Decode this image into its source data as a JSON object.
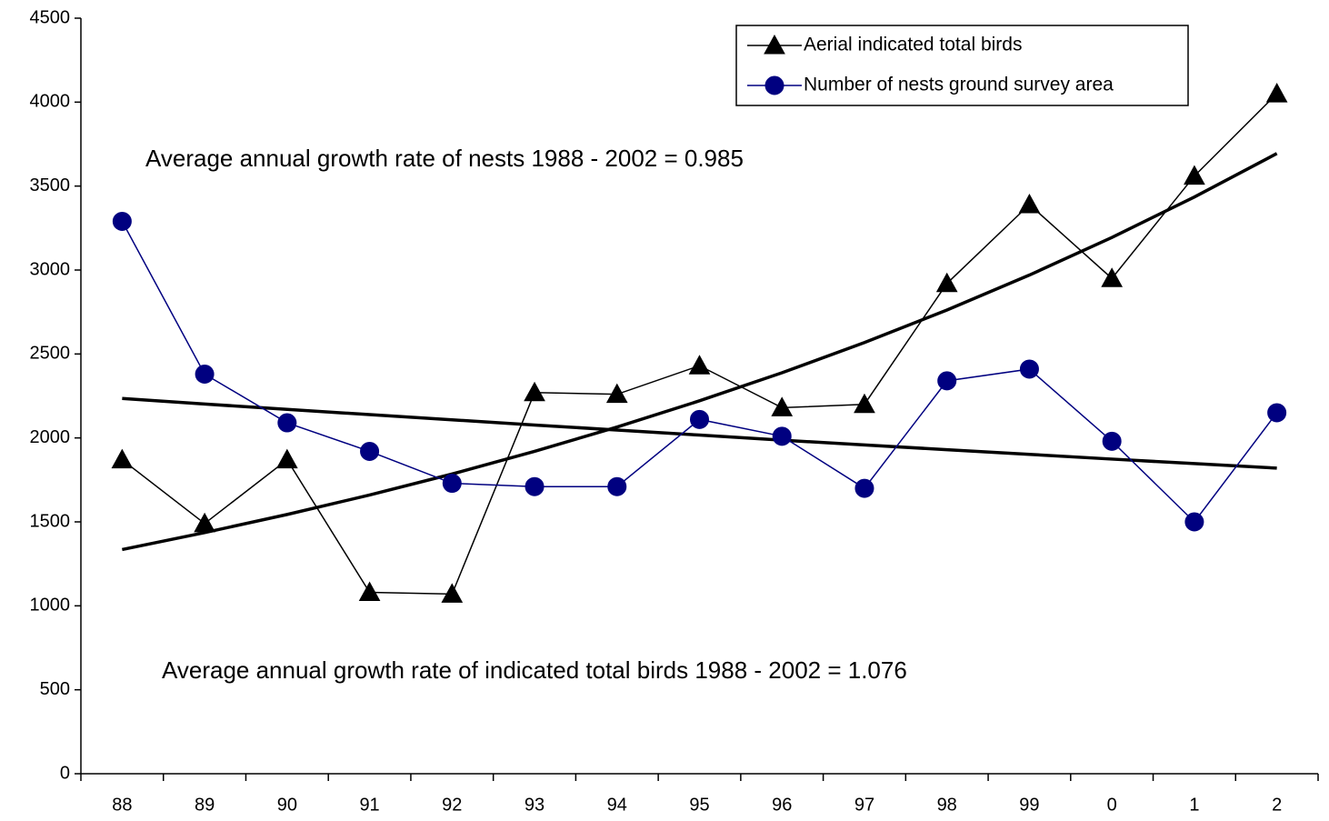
{
  "chart_data": {
    "type": "line",
    "categories": [
      "88",
      "89",
      "90",
      "91",
      "92",
      "93",
      "94",
      "95",
      "96",
      "97",
      "98",
      "99",
      "0",
      "1",
      "2"
    ],
    "series": [
      {
        "name": "Aerial indicated total birds",
        "color": "#000000",
        "marker": "triangle",
        "values": [
          1870,
          1490,
          1870,
          1080,
          1070,
          2270,
          2260,
          2430,
          2180,
          2200,
          2920,
          3390,
          2950,
          3560,
          4050
        ]
      },
      {
        "name": "Number of nests ground survey area",
        "color": "#000080",
        "marker": "circle",
        "values": [
          3290,
          2380,
          2090,
          1920,
          1730,
          1710,
          1710,
          2110,
          2010,
          1700,
          2340,
          2410,
          1980,
          1500,
          2150
        ]
      }
    ],
    "trendlines": [
      {
        "color": "#000000",
        "values": [
          2235,
          2202,
          2170,
          2139,
          2108,
          2077,
          2047,
          2017,
          1987,
          1958,
          1930,
          1902,
          1874,
          1847,
          1820
        ]
      },
      {
        "color": "#000000",
        "values": [
          1335,
          1436,
          1544,
          1660,
          1785,
          1920,
          2065,
          2221,
          2388,
          2568,
          2762,
          2970,
          3194,
          3435,
          3694
        ]
      }
    ],
    "annotations": [
      "Average annual growth rate of nests 1988 - 2002 = 0.985",
      "Average annual growth rate of indicated total birds 1988 - 2002 = 1.076"
    ],
    "ylim": [
      0,
      4500
    ],
    "yticks": [
      0,
      500,
      1000,
      1500,
      2000,
      2500,
      3000,
      3500,
      4000,
      4500
    ],
    "legend": "top-right",
    "grid": false
  }
}
